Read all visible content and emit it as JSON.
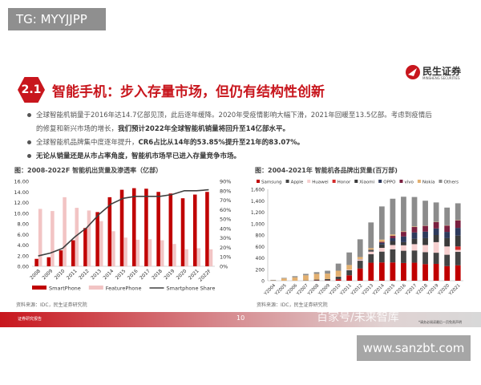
{
  "watermark_tag": "TG: MYYJJPP",
  "logo": {
    "name": "民生证券",
    "sub": "MINSHENG SECURITIES"
  },
  "section": {
    "number": "2.1",
    "title": "智能手机：步入存量市场，但仍有结构性创新"
  },
  "bullets": [
    {
      "text": "全球智能机销量于2016年达14.7亿部见顶，此后逐年缓降。2020年受疫情影响大幅下滑，2021年回暖至13.5亿部。考虑到疫情后",
      "bold": ""
    },
    {
      "text": "的修复和新兴市场的增长，",
      "bold": "我们预计2022年全球智能机销量将回升至14亿部水平。"
    },
    {
      "text": "全球智能机品牌集中度逐年提升，",
      "bold": "CR6占比从14年的53.85%提升至21年的83.07%。"
    },
    {
      "text": "",
      "bold": "无论从销量还是从市占率角度，智能机市场早已进入存量竞争市场。"
    }
  ],
  "chart_data": [
    {
      "type": "bar",
      "title": "图：2008-2022F 智能机出货量及渗透率（亿部）",
      "categories": [
        "2008",
        "2009",
        "2010",
        "2011",
        "2012",
        "2013",
        "2014",
        "2015",
        "2016",
        "2017",
        "2018",
        "2019",
        "2020",
        "2021",
        "2022F"
      ],
      "series": [
        {
          "name": "SmartPhone",
          "type": "bar",
          "axis": "left",
          "color": "#c00000",
          "values": [
            1.4,
            1.7,
            3.0,
            4.9,
            7.2,
            10.2,
            13.0,
            14.4,
            14.7,
            14.6,
            14.0,
            13.7,
            12.8,
            13.5,
            14.0
          ]
        },
        {
          "name": "FeaturePhone",
          "type": "bar",
          "axis": "left",
          "color": "#f2c4c4",
          "values": [
            10.8,
            10.4,
            13.0,
            11.0,
            10.5,
            8.5,
            6.6,
            5.4,
            5.0,
            5.1,
            4.9,
            4.2,
            3.2,
            3.4,
            3.2
          ]
        },
        {
          "name": "Smartphone Share",
          "type": "line",
          "axis": "right",
          "color": "#404040",
          "values": [
            11,
            14,
            19,
            31,
            41,
            55,
            66,
            72,
            74,
            74,
            74,
            76,
            80,
            80,
            81
          ]
        }
      ],
      "ylim": [
        0,
        16
      ],
      "yticks": [
        "0.00",
        "2.00",
        "4.00",
        "6.00",
        "8.00",
        "10.00",
        "12.00",
        "14.00",
        "16.00"
      ],
      "y2lim": [
        0,
        90
      ],
      "y2ticks": [
        "0%",
        "10%",
        "20%",
        "30%",
        "40%",
        "50%",
        "60%",
        "70%",
        "80%",
        "90%"
      ],
      "legend": "bottom",
      "grid": false,
      "source": "资料来源：IDC，民生证券研究院"
    },
    {
      "type": "bar",
      "stacked": true,
      "title": "图：2004-2021年 智能机各品牌出货量(百万部)",
      "categories": [
        "Y2004",
        "Y2005",
        "Y2006",
        "Y2007",
        "Y2008",
        "Y2009",
        "Y2010",
        "Y2011",
        "Y2012",
        "Y2013",
        "Y2014",
        "Y2015",
        "Y2016",
        "Y2017",
        "Y2018",
        "Y2019",
        "Y2020",
        "Y2021"
      ],
      "series": [
        {
          "name": "Samsung",
          "color": "#c00000",
          "values": [
            0,
            0,
            0,
            0,
            5,
            5,
            25,
            95,
            215,
            315,
            320,
            320,
            310,
            315,
            290,
            295,
            255,
            270
          ]
        },
        {
          "name": "Apple",
          "color": "#444444",
          "values": [
            0,
            0,
            0,
            5,
            15,
            25,
            45,
            90,
            135,
            150,
            190,
            230,
            215,
            215,
            210,
            195,
            200,
            235
          ]
        },
        {
          "name": "Huawei",
          "color": "#f6d0d0",
          "values": [
            0,
            0,
            0,
            0,
            0,
            0,
            5,
            10,
            25,
            45,
            65,
            75,
            95,
            110,
            125,
            185,
            145,
            35
          ]
        },
        {
          "name": "Honor",
          "color": "#d42a2a",
          "values": [
            0,
            0,
            0,
            0,
            0,
            0,
            0,
            0,
            0,
            0,
            0,
            0,
            0,
            0,
            0,
            0,
            0,
            60
          ]
        },
        {
          "name": "Xiaomi",
          "color": "#3a3a3a",
          "values": [
            0,
            0,
            0,
            0,
            0,
            0,
            0,
            0,
            5,
            20,
            60,
            70,
            55,
            95,
            120,
            125,
            145,
            190
          ]
        },
        {
          "name": "OPPO",
          "color": "#2e3a5c",
          "values": [
            0,
            0,
            0,
            0,
            0,
            0,
            0,
            0,
            0,
            10,
            30,
            50,
            100,
            110,
            115,
            115,
            110,
            135
          ]
        },
        {
          "name": "vivo",
          "color": "#7a2040",
          "values": [
            0,
            0,
            0,
            0,
            0,
            0,
            0,
            0,
            0,
            0,
            15,
            40,
            80,
            95,
            100,
            110,
            110,
            130
          ]
        },
        {
          "name": "Nokia",
          "color": "#e3b070",
          "values": [
            5,
            40,
            60,
            90,
            100,
            95,
            100,
            80,
            35,
            30,
            40,
            25,
            10,
            10,
            5,
            5,
            5,
            5
          ]
        },
        {
          "name": "Others",
          "color": "#8c8c8c",
          "values": [
            10,
            10,
            20,
            25,
            30,
            50,
            125,
            220,
            310,
            450,
            580,
            625,
            605,
            515,
            435,
            340,
            310,
            295
          ]
        }
      ],
      "ylim": [
        0,
        1600
      ],
      "yticks": [
        "0",
        "200",
        "400",
        "600",
        "800",
        "1,000",
        "1,200",
        "1,400",
        "1,600"
      ],
      "legend": "top",
      "grid": false,
      "source": "资料来源：IDC，民生证券研究院"
    }
  ],
  "footer": {
    "left": "证券研究报告",
    "page": "10",
    "watermark": "百家号/未来智库",
    "disclaimer": "*请务必阅读最后一页免责声明"
  },
  "site": "www.sanzbt.com"
}
